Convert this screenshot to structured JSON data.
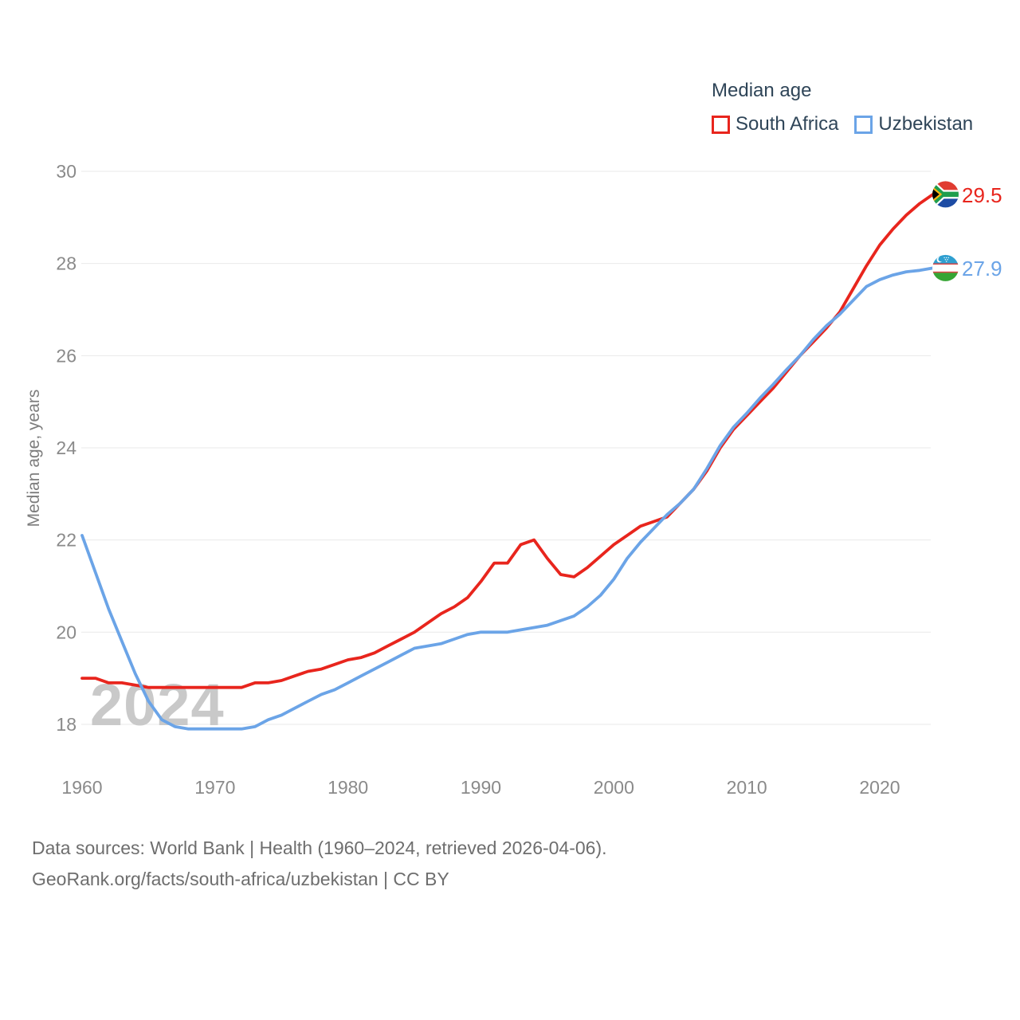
{
  "legend": {
    "title": "Median age",
    "items": [
      {
        "label": "South Africa",
        "color": "#e8251d"
      },
      {
        "label": "Uzbekistan",
        "color": "#6ba4e7"
      }
    ]
  },
  "y_axis": {
    "label": "Median age, years"
  },
  "watermark": "2024",
  "footer": {
    "line1": "Data sources: World Bank | Health (1960–2024, retrieved 2026-04-06).",
    "line2": "GeoRank.org/facts/south-africa/uzbekistan | CC BY"
  },
  "icons": [
    {
      "name": "south-africa-flag-icon"
    },
    {
      "name": "uzbekistan-flag-icon"
    }
  ],
  "chart_data": {
    "type": "line",
    "title": "Median age",
    "xlabel": "",
    "ylabel": "Median age, years",
    "x_years": {
      "start": 1960,
      "end": 2024,
      "step": 1
    },
    "xticks": [
      1960,
      1970,
      1980,
      1990,
      2000,
      2010,
      2020
    ],
    "yticks": [
      18,
      20,
      22,
      24,
      26,
      28,
      30
    ],
    "ylim": [
      17.4,
      30.3
    ],
    "grid": true,
    "legend_position": "top-right",
    "series": [
      {
        "name": "South Africa",
        "color": "#e8251d",
        "end_label": "29.5",
        "values": [
          19.0,
          19.0,
          18.9,
          18.9,
          18.85,
          18.8,
          18.8,
          18.8,
          18.8,
          18.8,
          18.8,
          18.8,
          18.8,
          18.9,
          18.9,
          18.95,
          19.05,
          19.15,
          19.2,
          19.3,
          19.4,
          19.45,
          19.55,
          19.7,
          19.85,
          20.0,
          20.2,
          20.4,
          20.55,
          20.75,
          21.1,
          21.5,
          21.5,
          21.9,
          22.0,
          21.6,
          21.25,
          21.2,
          21.4,
          21.65,
          21.9,
          22.1,
          22.3,
          22.4,
          22.5,
          22.8,
          23.1,
          23.5,
          24.0,
          24.4,
          24.7,
          25.0,
          25.3,
          25.65,
          26.0,
          26.3,
          26.6,
          26.95,
          27.45,
          27.95,
          28.4,
          28.75,
          29.05,
          29.3,
          29.5
        ]
      },
      {
        "name": "Uzbekistan",
        "color": "#6ba4e7",
        "end_label": "27.9",
        "values": [
          22.1,
          21.3,
          20.5,
          19.8,
          19.1,
          18.5,
          18.1,
          17.95,
          17.9,
          17.9,
          17.9,
          17.9,
          17.9,
          17.95,
          18.1,
          18.2,
          18.35,
          18.5,
          18.65,
          18.75,
          18.9,
          19.05,
          19.2,
          19.35,
          19.5,
          19.65,
          19.7,
          19.75,
          19.85,
          19.95,
          20.0,
          20.0,
          20.0,
          20.05,
          20.1,
          20.15,
          20.25,
          20.35,
          20.55,
          20.8,
          21.15,
          21.6,
          21.95,
          22.25,
          22.55,
          22.8,
          23.1,
          23.55,
          24.05,
          24.45,
          24.75,
          25.08,
          25.38,
          25.7,
          26.0,
          26.35,
          26.65,
          26.9,
          27.2,
          27.5,
          27.65,
          27.75,
          27.82,
          27.85,
          27.9
        ]
      }
    ]
  }
}
